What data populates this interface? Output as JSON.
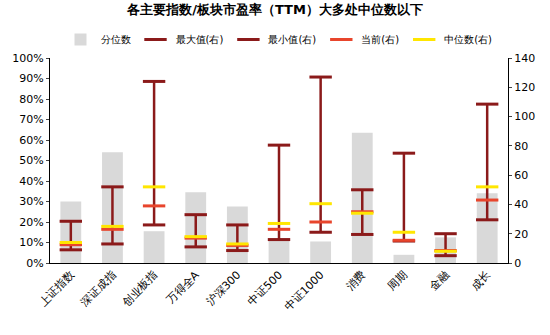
{
  "chart_data": {
    "type": "bar",
    "title": "各主要指数/板块市盈率（TTM）大多处中位数以下",
    "categories": [
      "上证指数",
      "深证成指",
      "创业板指",
      "万得全A",
      "沪深300",
      "中证500",
      "中证1000",
      "消费",
      "周期",
      "金融",
      "成长"
    ],
    "series": [
      {
        "name": "分位数",
        "type": "bar",
        "color": "#d9d9d9",
        "values": [
          30,
          54,
          15.5,
          34.5,
          27.5,
          12,
          10.5,
          63.5,
          4,
          12.5,
          34
        ]
      },
      {
        "name": "最大值(右)",
        "type": "scatter",
        "marker": "line",
        "color": "#8b1a1a",
        "axis": "y2",
        "values": [
          28.5,
          52,
          124,
          33,
          26,
          80.5,
          127,
          50,
          75,
          20,
          108.5
        ]
      },
      {
        "name": "最小值(右)",
        "type": "scatter",
        "marker": "line",
        "color": "#8b1a1a",
        "axis": "y2",
        "values": [
          9,
          13,
          26,
          11,
          8.5,
          16,
          21,
          19.5,
          15,
          5,
          29.5
        ]
      },
      {
        "name": "当前(右)",
        "type": "scatter",
        "marker": "line",
        "color": "#e8452c",
        "axis": "y2",
        "values": [
          12.5,
          23,
          39,
          17,
          12,
          23,
          28,
          35,
          15.5,
          8.5,
          43
        ]
      },
      {
        "name": "中位数(右)",
        "type": "scatter",
        "marker": "line",
        "color": "#ffe600",
        "axis": "y2",
        "values": [
          14,
          25,
          52,
          18,
          13,
          27,
          40.5,
          34,
          21,
          8,
          52
        ]
      }
    ],
    "ylim": [
      0,
      100
    ],
    "yticks": [
      {
        "value": 0,
        "label": "0%"
      },
      {
        "value": 10,
        "label": "10%"
      },
      {
        "value": 20,
        "label": "20%"
      },
      {
        "value": 30,
        "label": "30%"
      },
      {
        "value": 40,
        "label": "40%"
      },
      {
        "value": 50,
        "label": "50%"
      },
      {
        "value": 60,
        "label": "60%"
      },
      {
        "value": 70,
        "label": "70%"
      },
      {
        "value": 80,
        "label": "80%"
      },
      {
        "value": 90,
        "label": "90%"
      },
      {
        "value": 100,
        "label": "100%"
      }
    ],
    "y2lim": [
      0,
      140
    ],
    "y2ticks": [
      0,
      20,
      40,
      60,
      80,
      100,
      120,
      140
    ],
    "grid": false,
    "legend": "top"
  }
}
